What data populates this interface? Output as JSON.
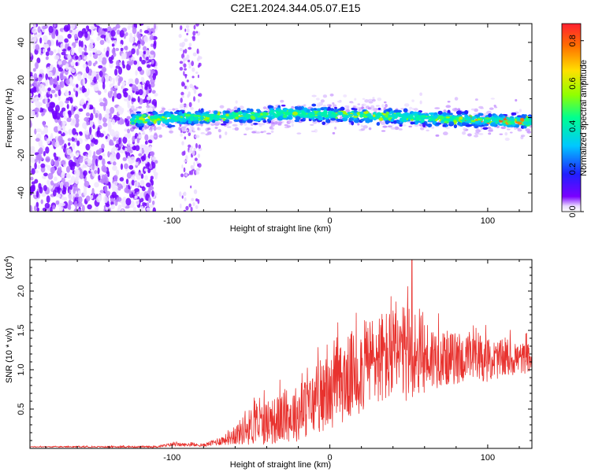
{
  "title": "C2E1.2024.344.05.07.E15",
  "chart_data": [
    {
      "type": "heatmap",
      "xlabel": "Height of straight line (km)",
      "ylabel": "Frequency (Hz)",
      "xlim": [
        -190,
        128
      ],
      "ylim": [
        -50,
        50
      ],
      "xticks": [
        -100,
        0,
        100
      ],
      "yticks": [
        -40,
        -20,
        0,
        20,
        40
      ],
      "colorbar": {
        "label": "Normalized spectral amplitude",
        "range": [
          0.0,
          0.88
        ],
        "ticks": [
          "0.0",
          "0.2",
          "0.4",
          "0.6",
          "0.8"
        ],
        "colormap": "rainbow"
      },
      "features": {
        "noise_region_x": [
          -190,
          -110
        ],
        "sparse_columns_x": [
          -95,
          -82
        ],
        "signal_band_x": [
          -125,
          128
        ],
        "signal_band_center_hz": [
          0,
          2
        ],
        "signal_band_halfwidth_hz": 6
      },
      "colors": {
        "low": "#7700ff",
        "background": "#ffffff"
      }
    },
    {
      "type": "line",
      "xlabel": "Height of straight line (km)",
      "ylabel": "SNR (10 * v/v)",
      "y_multiplier": "(x10",
      "y_multiplier_exp": "4",
      "y_multiplier_close": ")",
      "xlim": [
        -190,
        128
      ],
      "ylim": [
        0,
        2.4
      ],
      "xticks": [
        -100,
        0,
        100
      ],
      "yticks": [
        "0.5",
        "1.0",
        "1.5",
        "2.0"
      ],
      "series": [
        {
          "color": "#e8322e",
          "envelope": [
            {
              "x": -190,
              "mean": 0.02,
              "amp": 0.01
            },
            {
              "x": -110,
              "mean": 0.02,
              "amp": 0.02
            },
            {
              "x": -100,
              "mean": 0.05,
              "amp": 0.04
            },
            {
              "x": -80,
              "mean": 0.04,
              "amp": 0.03
            },
            {
              "x": -65,
              "mean": 0.12,
              "amp": 0.12
            },
            {
              "x": -50,
              "mean": 0.28,
              "amp": 0.4
            },
            {
              "x": -35,
              "mean": 0.35,
              "amp": 0.5
            },
            {
              "x": -20,
              "mean": 0.45,
              "amp": 0.6
            },
            {
              "x": 0,
              "mean": 0.7,
              "amp": 0.75
            },
            {
              "x": 15,
              "mean": 0.95,
              "amp": 0.95
            },
            {
              "x": 30,
              "mean": 1.15,
              "amp": 1.0
            },
            {
              "x": 50,
              "mean": 1.18,
              "amp": 1.05
            },
            {
              "x": 70,
              "mean": 1.15,
              "amp": 0.6
            },
            {
              "x": 100,
              "mean": 1.12,
              "amp": 0.45
            },
            {
              "x": 128,
              "mean": 1.15,
              "amp": 0.3
            }
          ],
          "peak": {
            "x": 52,
            "y": 2.42
          }
        }
      ]
    }
  ]
}
